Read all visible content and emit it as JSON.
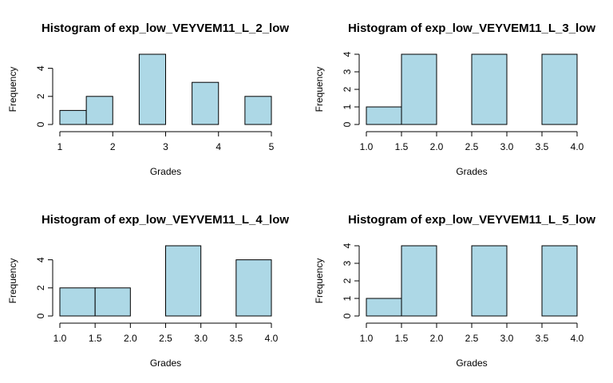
{
  "chart_data": [
    {
      "type": "bar",
      "title": "Histogram of exp_low_VEYVEM11_L_2_low",
      "xlabel": "Grades",
      "ylabel": "Frequency",
      "bins": [
        [
          1,
          1.5
        ],
        [
          1.5,
          2
        ],
        [
          2,
          2.5
        ],
        [
          2.5,
          3
        ],
        [
          3,
          3.5
        ],
        [
          3.5,
          4
        ],
        [
          4,
          4.5
        ],
        [
          4.5,
          5
        ]
      ],
      "values": [
        1,
        2,
        0,
        5,
        0,
        3,
        0,
        2
      ],
      "xlim": [
        1,
        5
      ],
      "ylim": [
        0,
        5
      ],
      "x_ticks": [
        1,
        2,
        3,
        4,
        5
      ],
      "x_tick_labels": [
        "1",
        "2",
        "3",
        "4",
        "5"
      ],
      "y_ticks": [
        0,
        2,
        4
      ],
      "y_tick_labels": [
        "0",
        "2",
        "4"
      ],
      "bar_color": "#add8e6",
      "grid": false
    },
    {
      "type": "bar",
      "title": "Histogram of exp_low_VEYVEM11_L_3_low",
      "xlabel": "Grades",
      "ylabel": "Frequency",
      "bins": [
        [
          1,
          1.5
        ],
        [
          1.5,
          2
        ],
        [
          2,
          2.5
        ],
        [
          2.5,
          3
        ],
        [
          3,
          3.5
        ],
        [
          3.5,
          4
        ]
      ],
      "values": [
        1,
        4,
        0,
        4,
        0,
        4
      ],
      "xlim": [
        1,
        4
      ],
      "ylim": [
        0,
        4
      ],
      "x_ticks": [
        1,
        1.5,
        2,
        2.5,
        3,
        3.5,
        4
      ],
      "x_tick_labels": [
        "1.0",
        "1.5",
        "2.0",
        "2.5",
        "3.0",
        "3.5",
        "4.0"
      ],
      "y_ticks": [
        0,
        1,
        2,
        3,
        4
      ],
      "y_tick_labels": [
        "0",
        "1",
        "2",
        "3",
        "4"
      ],
      "bar_color": "#add8e6",
      "grid": false
    },
    {
      "type": "bar",
      "title": "Histogram of exp_low_VEYVEM11_L_4_low",
      "xlabel": "Grades",
      "ylabel": "Frequency",
      "bins": [
        [
          1,
          1.5
        ],
        [
          1.5,
          2
        ],
        [
          2,
          2.5
        ],
        [
          2.5,
          3
        ],
        [
          3,
          3.5
        ],
        [
          3.5,
          4
        ]
      ],
      "values": [
        2,
        2,
        0,
        5,
        0,
        4
      ],
      "xlim": [
        1,
        4
      ],
      "ylim": [
        0,
        5
      ],
      "x_ticks": [
        1,
        1.5,
        2,
        2.5,
        3,
        3.5,
        4
      ],
      "x_tick_labels": [
        "1.0",
        "1.5",
        "2.0",
        "2.5",
        "3.0",
        "3.5",
        "4.0"
      ],
      "y_ticks": [
        0,
        2,
        4
      ],
      "y_tick_labels": [
        "0",
        "2",
        "4"
      ],
      "bar_color": "#add8e6",
      "grid": false
    },
    {
      "type": "bar",
      "title": "Histogram of exp_low_VEYVEM11_L_5_low",
      "xlabel": "Grades",
      "ylabel": "Frequency",
      "bins": [
        [
          1,
          1.5
        ],
        [
          1.5,
          2
        ],
        [
          2,
          2.5
        ],
        [
          2.5,
          3
        ],
        [
          3,
          3.5
        ],
        [
          3.5,
          4
        ]
      ],
      "values": [
        1,
        4,
        0,
        4,
        0,
        4
      ],
      "xlim": [
        1,
        4
      ],
      "ylim": [
        0,
        4
      ],
      "x_ticks": [
        1,
        1.5,
        2,
        2.5,
        3,
        3.5,
        4
      ],
      "x_tick_labels": [
        "1.0",
        "1.5",
        "2.0",
        "2.5",
        "3.0",
        "3.5",
        "4.0"
      ],
      "y_ticks": [
        0,
        1,
        2,
        3,
        4
      ],
      "y_tick_labels": [
        "0",
        "1",
        "2",
        "3",
        "4"
      ],
      "bar_color": "#add8e6",
      "grid": false
    }
  ]
}
